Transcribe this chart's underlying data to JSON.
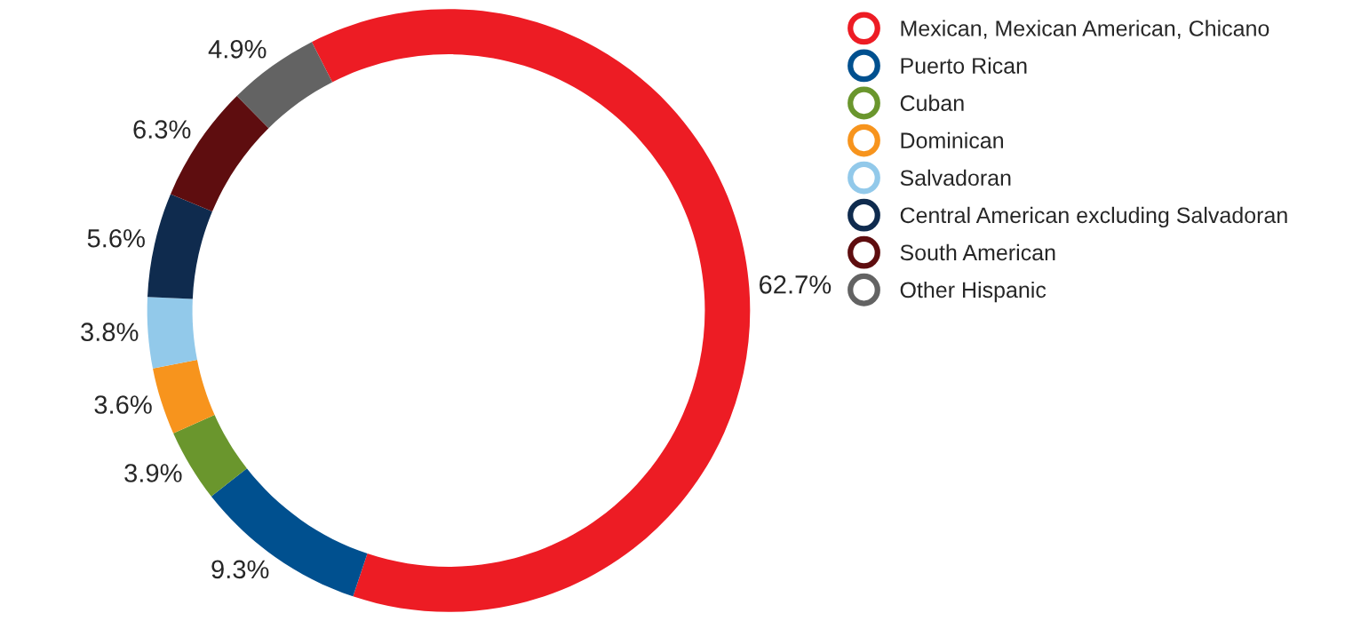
{
  "chart_data": {
    "type": "donut",
    "categories": [
      "Mexican, Mexican American, Chicano",
      "Puerto Rican",
      "Cuban",
      "Dominican",
      "Salvadoran",
      "Central American excluding Salvadoran",
      "South American",
      "Other Hispanic"
    ],
    "values": [
      62.7,
      9.3,
      3.9,
      3.6,
      3.8,
      5.6,
      6.3,
      4.9
    ],
    "colors": [
      "#ed1c24",
      "#00508f",
      "#6a962d",
      "#f7941d",
      "#92c9ea",
      "#0f2b4e",
      "#5e0d0f",
      "#636363"
    ],
    "value_labels": [
      "62.7%",
      "9.3%",
      "3.9%",
      "3.6%",
      "3.8%",
      "5.6%",
      "6.3%",
      "4.9%"
    ],
    "legend": "right"
  }
}
